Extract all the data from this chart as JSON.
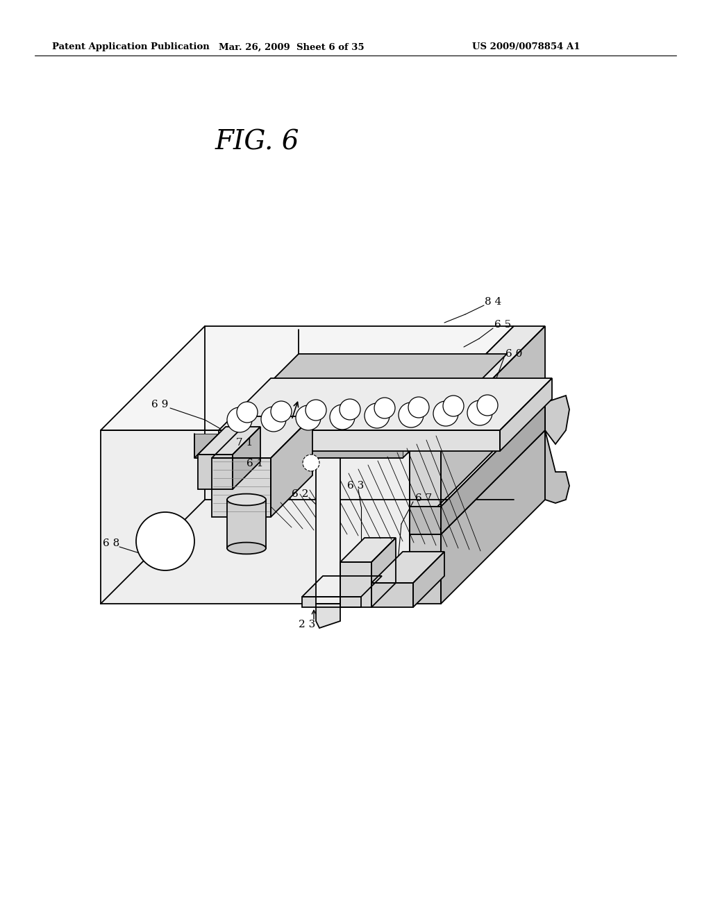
{
  "bg_color": "#ffffff",
  "header_left": "Patent Application Publication",
  "header_mid": "Mar. 26, 2009  Sheet 6 of 35",
  "header_right": "US 2009/0078854 A1",
  "fig_label": "FIG. 6",
  "lw": 1.3,
  "lw_thin": 0.6,
  "lw_label": 0.8
}
